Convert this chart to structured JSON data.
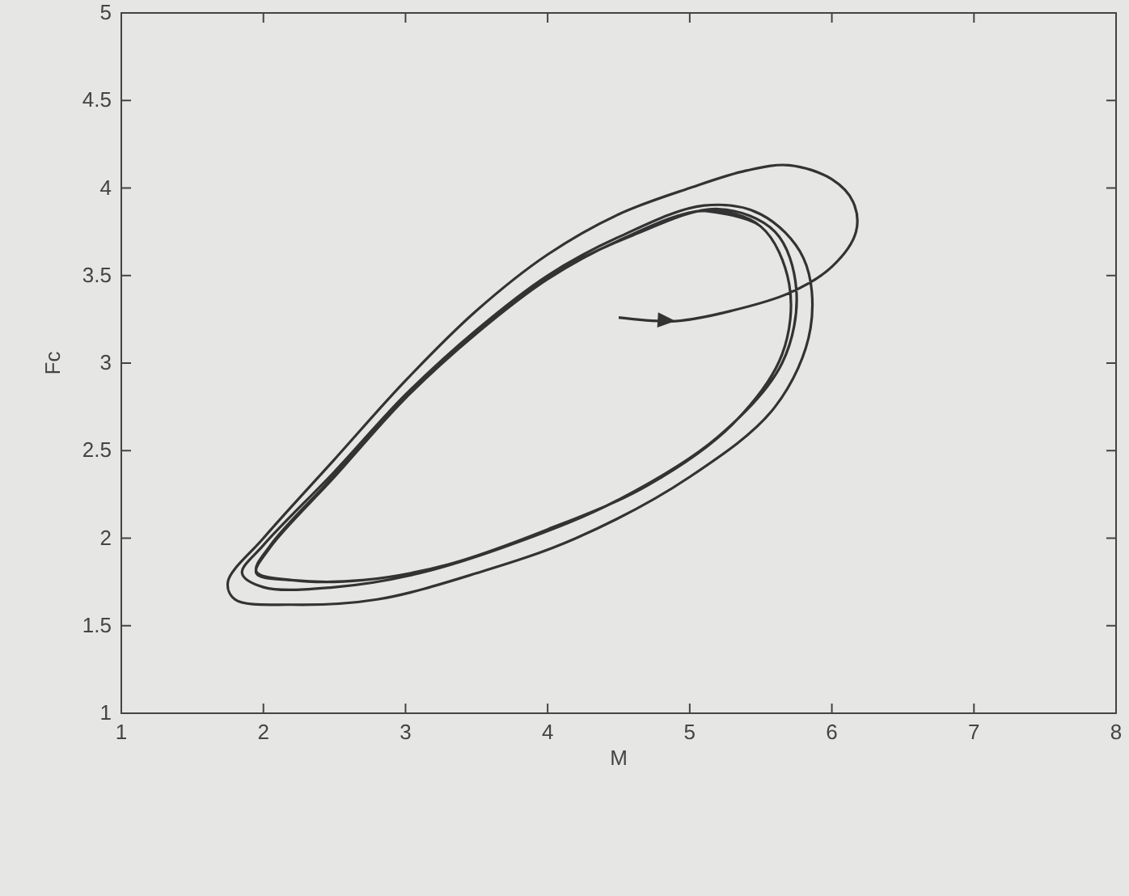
{
  "chart_data": {
    "type": "line",
    "xlabel": "M",
    "ylabel": "Fc",
    "xlim": [
      1,
      8
    ],
    "xticks": [
      1,
      2,
      3,
      4,
      5,
      6,
      7,
      8
    ],
    "ylim": [
      1,
      5
    ],
    "yticks": [
      1,
      1.5,
      2,
      2.5,
      3,
      3.5,
      4,
      4.5,
      5
    ],
    "marker": "none",
    "line_style": "solid",
    "series": [
      {
        "color": "#333333",
        "x": [
          4.5,
          4.9,
          5.3,
          5.7,
          6.0,
          6.17,
          6.15,
          6.0,
          5.7,
          5.4,
          5.0,
          4.5,
          4.0,
          3.5,
          3.0,
          2.5,
          2.0,
          1.75,
          1.8,
          2.2,
          2.8,
          3.5,
          4.2,
          5.0,
          5.6,
          5.85,
          5.8,
          5.5,
          5.1,
          4.5,
          4.0,
          3.5,
          3.0,
          2.5,
          2.0,
          1.85,
          2.0,
          2.5,
          3.1,
          3.8,
          4.5,
          5.2,
          5.65,
          5.75,
          5.6,
          5.2,
          4.6,
          4.0,
          3.5,
          3.0,
          2.5,
          2.05,
          1.95,
          2.2,
          2.7,
          3.3,
          4.0,
          4.7,
          5.3,
          5.65,
          5.7,
          5.5,
          5.1,
          4.5,
          4.0,
          3.5,
          3.0,
          2.5,
          2.05,
          1.95,
          2.2,
          2.7,
          3.3,
          4.0,
          4.7,
          5.3,
          5.65,
          5.7,
          5.5,
          5.1
        ],
        "values": [
          3.26,
          3.24,
          3.3,
          3.4,
          3.55,
          3.75,
          3.92,
          4.05,
          4.13,
          4.1,
          4.0,
          3.85,
          3.62,
          3.3,
          2.9,
          2.45,
          2.0,
          1.75,
          1.65,
          1.62,
          1.65,
          1.8,
          2.0,
          2.35,
          2.75,
          3.2,
          3.6,
          3.85,
          3.9,
          3.72,
          3.5,
          3.19,
          2.82,
          2.38,
          1.96,
          1.8,
          1.72,
          1.72,
          1.8,
          1.98,
          2.22,
          2.58,
          3.0,
          3.42,
          3.75,
          3.88,
          3.73,
          3.49,
          3.18,
          2.81,
          2.36,
          1.96,
          1.81,
          1.76,
          1.76,
          1.85,
          2.05,
          2.3,
          2.65,
          3.05,
          3.45,
          3.78,
          3.87,
          3.7,
          3.48,
          3.17,
          2.8,
          2.35,
          1.95,
          1.8,
          1.76,
          1.76,
          1.85,
          2.05,
          2.3,
          2.65,
          3.05,
          3.45,
          3.78,
          3.87
        ]
      }
    ]
  }
}
